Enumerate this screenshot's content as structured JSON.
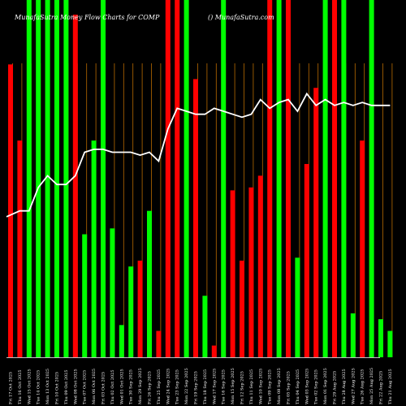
{
  "chart_data": {
    "type": "bar",
    "title_left": "MunafaSutra Money Flow Charts for COMP",
    "title_right": "() MunafaSutra.com",
    "x_tick_labels": [
      "Fri 17 Oct 2025",
      "Thu 16 Oct 2025",
      "Wed 15 Oct 2025",
      "Tue 14 Oct 2025",
      "Mon 13 Oct 2025",
      "Fri 10 Oct 2025",
      "Thu 09 Oct 2025",
      "Wed 08 Oct 2025",
      "Tue 07 Oct 2025",
      "Mon 06 Oct 2025",
      "Fri 03 Oct 2025",
      "Thu 02 Oct 2025",
      "Wed 01 Oct 2025",
      "Tue 30 Sep 2025",
      "Mon 29 Sep 2025",
      "Fri 26 Sep 2025",
      "Thu 25 Sep 2025",
      "Wed 24 Sep 2025",
      "Tue 23 Sep 2025",
      "Mon 22 Sep 2025",
      "Fri 19 Sep 2025",
      "Thu 18 Sep 2025",
      "Wed 17 Sep 2025",
      "Tue 16 Sep 2025",
      "Mon 15 Sep 2025",
      "Fri 12 Sep 2025",
      "Thu 11 Sep 2025",
      "Wed 10 Sep 2025",
      "Tue 09 Sep 2025",
      "Mon 08 Sep 2025",
      "Fri 05 Sep 2025",
      "Thu 04 Sep 2025",
      "Wed 03 Sep 2025",
      "Tue 02 Sep 2025",
      "Mon 01 Sep 2025",
      "Fri 29 Aug 2025",
      "Thu 28 Aug 2025",
      "Wed 27 Aug 2025",
      "Tue 26 Aug 2025",
      "Mon 25 Aug 2025",
      "Fri 22 Aug 2025",
      "Thu 21 Aug 2025"
    ],
    "bars": [
      {
        "color": "red",
        "value": 100
      },
      {
        "color": "red",
        "value": 74
      },
      {
        "color": "green",
        "value": 122
      },
      {
        "color": "green",
        "value": 122
      },
      {
        "color": "green",
        "value": 122
      },
      {
        "color": "green",
        "value": 122
      },
      {
        "color": "green",
        "value": 122
      },
      {
        "color": "red",
        "value": 117
      },
      {
        "color": "green",
        "value": 42
      },
      {
        "color": "green",
        "value": 74
      },
      {
        "color": "green",
        "value": 122
      },
      {
        "color": "green",
        "value": 44
      },
      {
        "color": "green",
        "value": 11
      },
      {
        "color": "green",
        "value": 31
      },
      {
        "color": "red",
        "value": 33
      },
      {
        "color": "green",
        "value": 50
      },
      {
        "color": "red",
        "value": 9
      },
      {
        "color": "red",
        "value": 122
      },
      {
        "color": "red",
        "value": 122
      },
      {
        "color": "green",
        "value": 122
      },
      {
        "color": "red",
        "value": 95
      },
      {
        "color": "green",
        "value": 21
      },
      {
        "color": "red",
        "value": 4
      },
      {
        "color": "green",
        "value": 122
      },
      {
        "color": "red",
        "value": 57
      },
      {
        "color": "red",
        "value": 33
      },
      {
        "color": "red",
        "value": 58
      },
      {
        "color": "red",
        "value": 62
      },
      {
        "color": "red",
        "value": 122
      },
      {
        "color": "green",
        "value": 122
      },
      {
        "color": "red",
        "value": 122
      },
      {
        "color": "green",
        "value": 34
      },
      {
        "color": "red",
        "value": 66
      },
      {
        "color": "red",
        "value": 92
      },
      {
        "color": "green",
        "value": 122
      },
      {
        "color": "red",
        "value": 122
      },
      {
        "color": "green",
        "value": 122
      },
      {
        "color": "green",
        "value": 15
      },
      {
        "color": "red",
        "value": 74
      },
      {
        "color": "green",
        "value": 122
      },
      {
        "color": "green",
        "value": 13
      },
      {
        "color": "green",
        "value": 9
      }
    ],
    "flow_line": [
      48,
      50,
      50,
      58,
      62,
      59,
      59,
      62,
      70,
      71,
      71,
      70,
      70,
      70,
      69,
      70,
      67,
      78,
      85,
      84,
      83,
      83,
      85,
      84,
      83,
      82,
      83,
      88,
      85,
      87,
      88,
      84,
      90,
      86,
      88,
      86,
      87,
      86,
      87,
      86,
      86,
      86
    ],
    "value_range": [
      0,
      122
    ]
  }
}
